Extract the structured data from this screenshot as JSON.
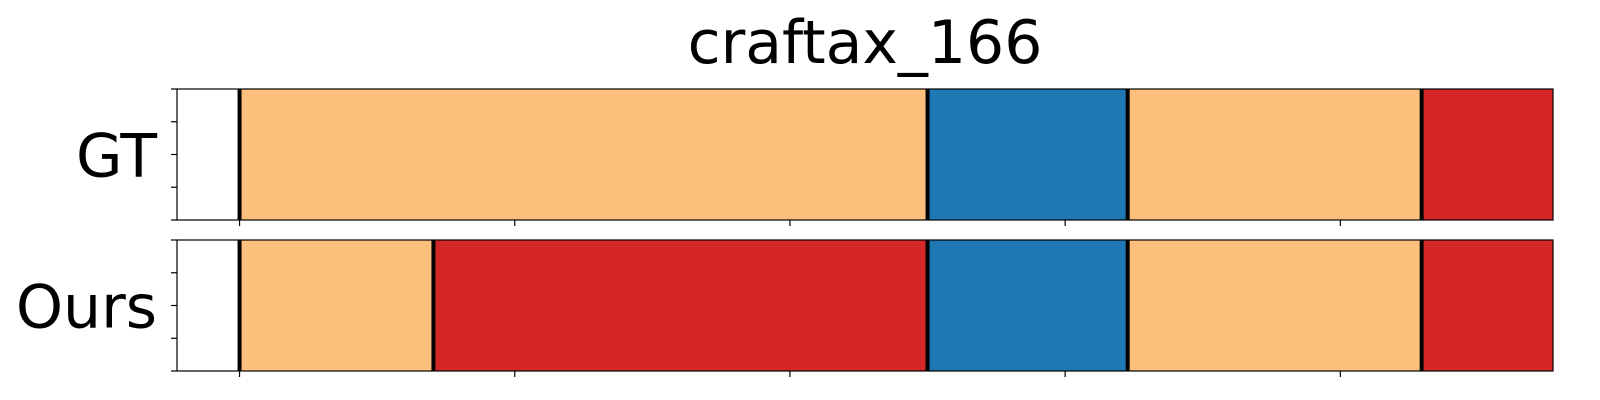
{
  "chart_data": {
    "type": "bar",
    "title": "craftax_166",
    "xlim": [
      0,
      22
    ],
    "rows": [
      {
        "label": "GT",
        "segments": [
          {
            "start": 1,
            "end": 12,
            "color": "#fdbf7c"
          },
          {
            "start": 12,
            "end": 15.2,
            "color": "#1f77b4"
          },
          {
            "start": 15.2,
            "end": 19.9,
            "color": "#fdbf7c"
          },
          {
            "start": 19.9,
            "end": 23.1,
            "color": "#d62728"
          }
        ],
        "end_marker": 23.1
      },
      {
        "label": "Ours",
        "segments": [
          {
            "start": 1,
            "end": 4.1,
            "color": "#fdbf7c"
          },
          {
            "start": 4.1,
            "end": 12,
            "color": "#d62728"
          },
          {
            "start": 12,
            "end": 15.2,
            "color": "#1f77b4"
          },
          {
            "start": 15.2,
            "end": 19.9,
            "color": "#fdbf7c"
          },
          {
            "start": 19.9,
            "end": 23.1,
            "color": "#d62728"
          }
        ],
        "end_marker": 23.1
      }
    ],
    "xticks": [
      1,
      5.4,
      9.8,
      14.2,
      18.6,
      23
    ],
    "xtick_labels_shown": false,
    "yticks_per_panel": 5,
    "grid": false,
    "legend": "none",
    "boundary_color": "#000000"
  }
}
